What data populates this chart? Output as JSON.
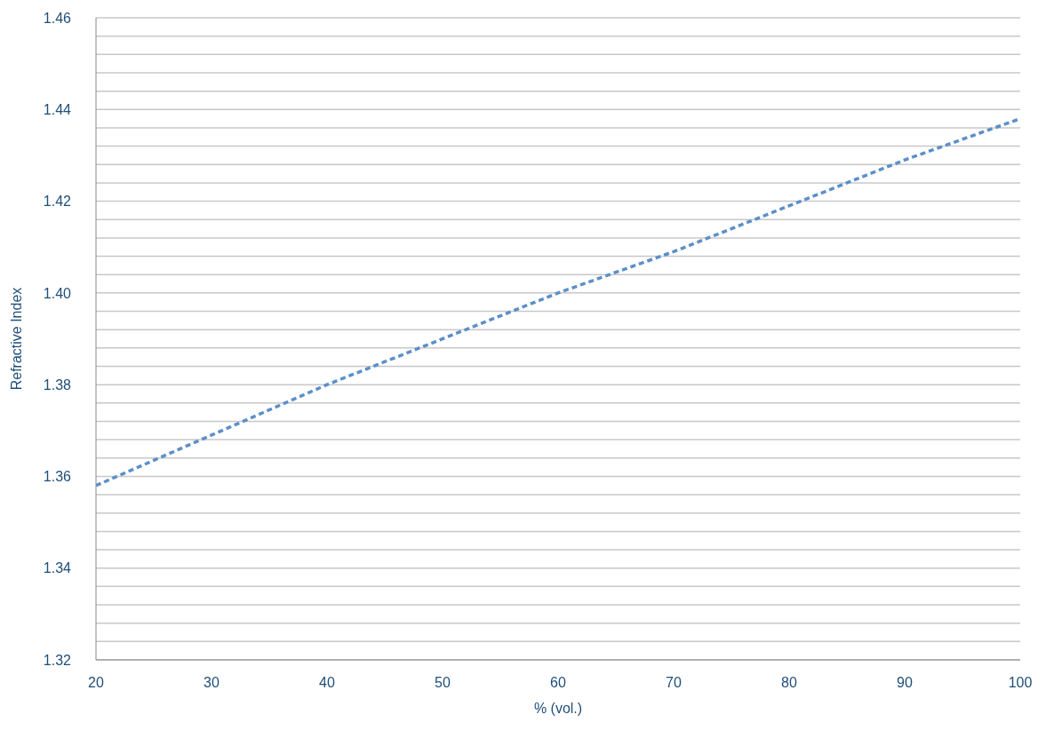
{
  "chart_data": {
    "type": "line",
    "xlabel": "% (vol.)",
    "ylabel": "Refractive Index",
    "x": [
      20,
      30,
      40,
      50,
      60,
      70,
      80,
      90,
      100
    ],
    "series": [
      {
        "color": "#5b8fc9",
        "values": [
          1.358,
          1.369,
          1.38,
          1.39,
          1.4,
          1.409,
          1.419,
          1.429,
          1.438
        ]
      }
    ],
    "xlim": [
      20,
      100
    ],
    "xticks": [
      20,
      30,
      40,
      50,
      60,
      70,
      80,
      90,
      100
    ],
    "ylim": [
      1.32,
      1.46
    ],
    "yticks": [
      {
        "value": 1.32,
        "label": "1.32"
      },
      {
        "value": 1.324,
        "label": null
      },
      {
        "value": 1.328,
        "label": null
      },
      {
        "value": 1.332,
        "label": null
      },
      {
        "value": 1.336,
        "label": null
      },
      {
        "value": 1.34,
        "label": "1.34"
      },
      {
        "value": 1.344,
        "label": null
      },
      {
        "value": 1.348,
        "label": null
      },
      {
        "value": 1.352,
        "label": null
      },
      {
        "value": 1.356,
        "label": null
      },
      {
        "value": 1.36,
        "label": "1.36"
      },
      {
        "value": 1.364,
        "label": null
      },
      {
        "value": 1.368,
        "label": null
      },
      {
        "value": 1.372,
        "label": null
      },
      {
        "value": 1.376,
        "label": null
      },
      {
        "value": 1.38,
        "label": "1.38"
      },
      {
        "value": 1.384,
        "label": null
      },
      {
        "value": 1.388,
        "label": null
      },
      {
        "value": 1.392,
        "label": null
      },
      {
        "value": 1.396,
        "label": null
      },
      {
        "value": 1.4,
        "label": "1.40"
      },
      {
        "value": 1.404,
        "label": null
      },
      {
        "value": 1.408,
        "label": null
      },
      {
        "value": 1.412,
        "label": null
      },
      {
        "value": 1.416,
        "label": null
      },
      {
        "value": 1.42,
        "label": "1.42"
      },
      {
        "value": 1.424,
        "label": null
      },
      {
        "value": 1.428,
        "label": null
      },
      {
        "value": 1.432,
        "label": null
      },
      {
        "value": 1.436,
        "label": null
      },
      {
        "value": 1.44,
        "label": "1.44"
      },
      {
        "value": 1.444,
        "label": null
      },
      {
        "value": 1.448,
        "label": null
      },
      {
        "value": 1.452,
        "label": null
      },
      {
        "value": 1.456,
        "label": null
      },
      {
        "value": 1.46,
        "label": "1.46"
      }
    ],
    "grid": "y",
    "marker": "none",
    "line_style": "dashed",
    "legend": false
  }
}
